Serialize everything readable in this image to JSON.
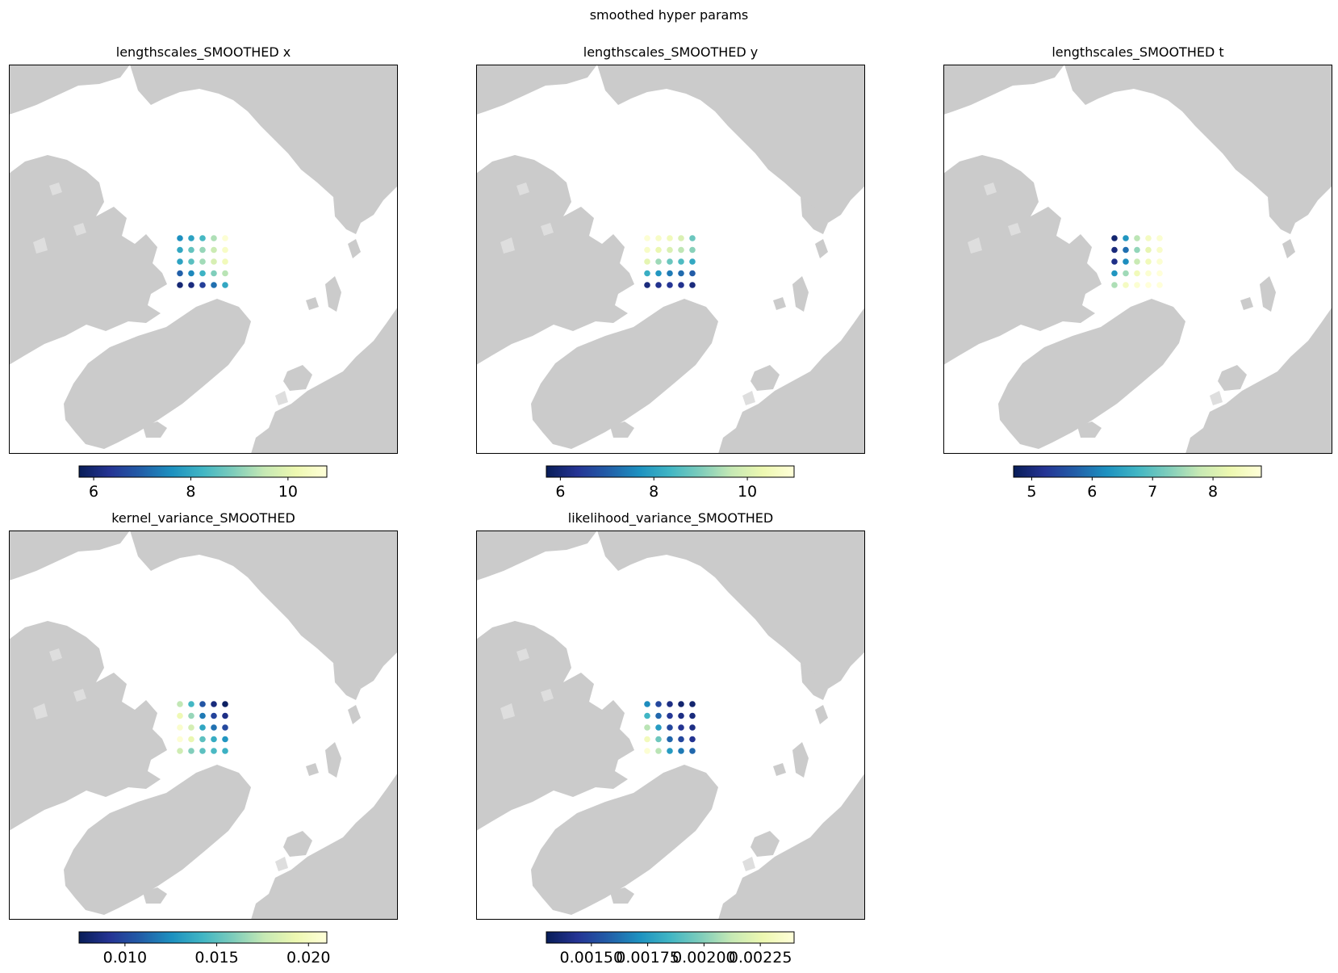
{
  "figure": {
    "suptitle": "smoothed hyper params"
  },
  "colormap": {
    "name": "YlGnBu_r",
    "stops": [
      "#081d58",
      "#253494",
      "#225ea8",
      "#1d91c0",
      "#41b6c4",
      "#7fcdbb",
      "#c7e9b4",
      "#edf8b1",
      "#ffffd9"
    ]
  },
  "map_style": {
    "land": "#cbcbcb",
    "ocean": "#ffffff",
    "frame": "#000000"
  },
  "chart_data": [
    {
      "type": "scatter",
      "title": "lengthscales_SMOOTHED x",
      "colorbar": {
        "range": [
          5.7,
          10.8
        ],
        "ticks": [
          6,
          8,
          10
        ]
      },
      "grid_values": [
        [
          7.6,
          7.9,
          8.3,
          9.3,
          10.7
        ],
        [
          8.0,
          8.6,
          9.1,
          9.6,
          10.5
        ],
        [
          7.9,
          8.5,
          9.2,
          9.8,
          10.3
        ],
        [
          7.0,
          7.5,
          8.2,
          8.9,
          9.4
        ],
        [
          6.0,
          6.1,
          6.5,
          7.2,
          8.0
        ]
      ]
    },
    {
      "type": "scatter",
      "title": "lengthscales_SMOOTHED y",
      "colorbar": {
        "range": [
          5.7,
          11.0
        ],
        "ticks": [
          6,
          8,
          10
        ]
      },
      "grid_values": [
        [
          10.9,
          10.7,
          10.5,
          10.0,
          8.8
        ],
        [
          10.7,
          10.3,
          10.0,
          9.6,
          9.1
        ],
        [
          10.2,
          9.3,
          8.8,
          8.5,
          8.1
        ],
        [
          8.2,
          7.8,
          7.4,
          7.2,
          7.0
        ],
        [
          6.1,
          6.3,
          6.4,
          6.3,
          6.1
        ]
      ]
    },
    {
      "type": "scatter",
      "title": "lengthscales_SMOOTHED t",
      "colorbar": {
        "range": [
          4.7,
          8.8
        ],
        "ticks": [
          5,
          6,
          7,
          8
        ]
      },
      "grid_values": [
        [
          4.9,
          6.3,
          7.7,
          8.5,
          8.7
        ],
        [
          5.0,
          5.9,
          7.4,
          8.2,
          8.6
        ],
        [
          5.1,
          6.2,
          7.8,
          8.4,
          8.7
        ],
        [
          6.3,
          7.5,
          8.4,
          8.7,
          8.8
        ],
        [
          7.6,
          8.5,
          8.7,
          8.8,
          8.8
        ]
      ]
    },
    {
      "type": "scatter",
      "title": "kernel_variance_SMOOTHED",
      "colorbar": {
        "range": [
          0.0075,
          0.021
        ],
        "ticks": [
          0.01,
          0.015,
          0.02
        ],
        "tick_labels": [
          "0.010",
          "0.015",
          "0.020"
        ]
      },
      "grid_values": [
        [
          0.0175,
          0.0143,
          0.0105,
          0.0085,
          0.0078
        ],
        [
          0.0195,
          0.0165,
          0.0118,
          0.0098,
          0.0088
        ],
        [
          0.0205,
          0.0182,
          0.0135,
          0.0115,
          0.01
        ],
        [
          0.0208,
          0.0192,
          0.015,
          0.0138,
          0.0128
        ],
        [
          0.018,
          0.016,
          0.015,
          0.0145,
          0.014
        ]
      ]
    },
    {
      "type": "scatter",
      "title": "likelihood_variance_SMOOTHED",
      "colorbar": {
        "range": [
          0.0013,
          0.0024
        ],
        "ticks": [
          0.0015,
          0.00175,
          0.002,
          0.00225
        ],
        "tick_labels": [
          "0.00150",
          "0.00175",
          "0.00200",
          "0.00225"
        ]
      },
      "grid_values": [
        [
          0.0017,
          0.0015,
          0.0014,
          0.00135,
          0.00135
        ],
        [
          0.00185,
          0.0016,
          0.00145,
          0.0014,
          0.00138
        ],
        [
          0.0021,
          0.00175,
          0.0015,
          0.00143,
          0.0014
        ],
        [
          0.0023,
          0.00195,
          0.0016,
          0.0015,
          0.00143
        ],
        [
          0.00238,
          0.0021,
          0.00175,
          0.00165,
          0.0016
        ]
      ]
    }
  ]
}
